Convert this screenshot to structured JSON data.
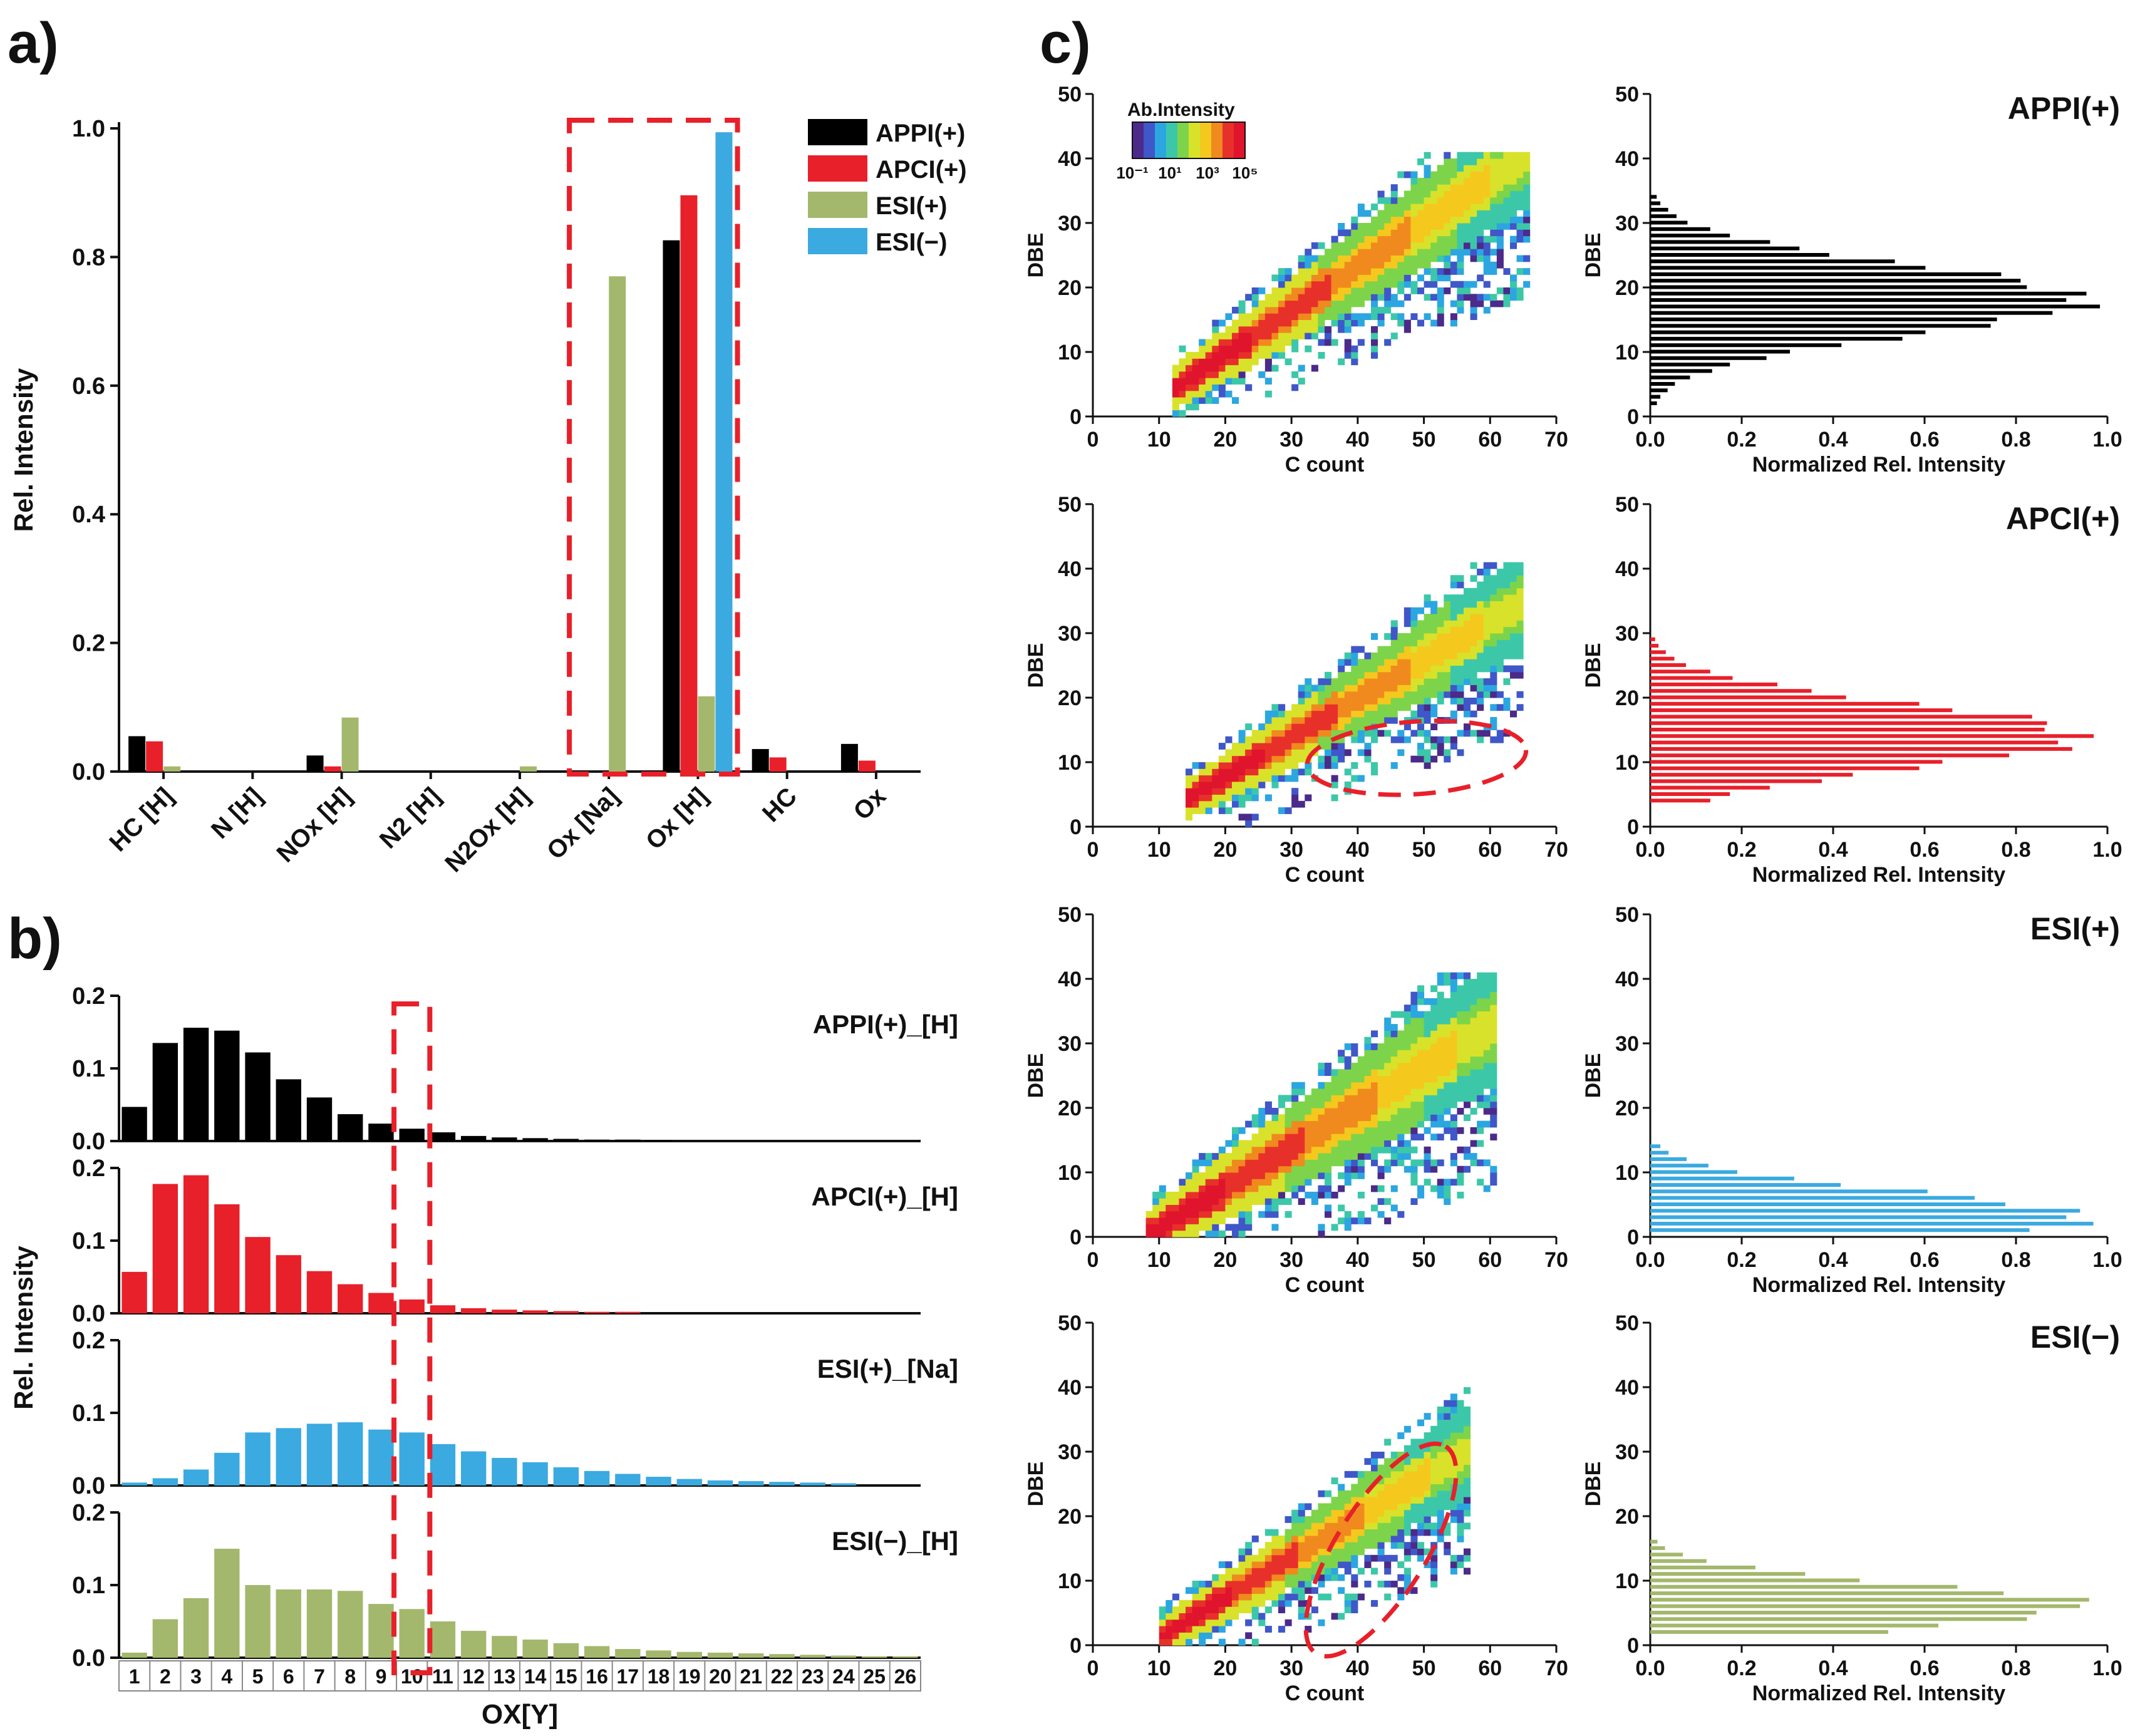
{
  "panels": {
    "a": "a)",
    "b": "b)",
    "c": "c)"
  },
  "colors": {
    "APPI": "#000000",
    "APCI": "#e8202a",
    "ESIpos": "#a3b86c",
    "ESIneg": "#3aaae0",
    "highlight": "#e8202a"
  },
  "chart_data": [
    {
      "id": "panel-a",
      "type": "bar",
      "ylabel": "Rel. Intensity",
      "ylim": [
        0,
        1.0
      ],
      "yticks": [
        "0.0",
        "0.2",
        "0.4",
        "0.6",
        "0.8",
        "1.0"
      ],
      "categories": [
        "HC [H]",
        "N [H]",
        "NOx [H]",
        "N2 [H]",
        "N2Ox [H]",
        "Ox [Na]",
        "Ox [H]",
        "HC",
        "Ox"
      ],
      "series": [
        {
          "name": "APPI(+)",
          "color": "#000000",
          "values": [
            0.055,
            0.0,
            0.025,
            0.0,
            0.0,
            0.0,
            0.826,
            0.035,
            0.043
          ]
        },
        {
          "name": "APCI(+)",
          "color": "#e8202a",
          "values": [
            0.047,
            0.0,
            0.008,
            0.0,
            0.0,
            0.0,
            0.896,
            0.022,
            0.017
          ]
        },
        {
          "name": "ESI(+)",
          "color": "#a3b86c",
          "values": [
            0.008,
            0.0,
            0.084,
            0.0,
            0.008,
            0.77,
            0.117,
            0.0,
            0.0
          ]
        },
        {
          "name": "ESI(−)",
          "color": "#3aaae0",
          "values": [
            0.0,
            0.0,
            0.0,
            0.0,
            0.0,
            0.0,
            0.994,
            0.0,
            0.0
          ]
        }
      ],
      "highlight": "Ox [Na] to Ox [H]"
    },
    {
      "id": "panel-b",
      "type": "bar",
      "ylabel": "Rel. Intensity",
      "xlabel": "OX[Y]",
      "categories": [
        "1",
        "2",
        "3",
        "4",
        "5",
        "6",
        "7",
        "8",
        "9",
        "10",
        "11",
        "12",
        "13",
        "14",
        "15",
        "16",
        "17",
        "18",
        "19",
        "20",
        "21",
        "22",
        "23",
        "24",
        "25",
        "26"
      ],
      "ylim": [
        0,
        0.2
      ],
      "yticks": [
        "0.0",
        "0.1",
        "0.2"
      ],
      "subplots": [
        {
          "name": "APPI(+)_[H]",
          "color": "#000000",
          "values": [
            0.047,
            0.135,
            0.156,
            0.152,
            0.122,
            0.085,
            0.06,
            0.037,
            0.024,
            0.017,
            0.012,
            0.007,
            0.005,
            0.004,
            0.003,
            0.002,
            0.002,
            0.001,
            0,
            0,
            0,
            0,
            0,
            0,
            0,
            0
          ]
        },
        {
          "name": "APCI(+)_[H]",
          "color": "#e8202a",
          "values": [
            0.057,
            0.178,
            0.19,
            0.15,
            0.105,
            0.08,
            0.058,
            0.04,
            0.028,
            0.019,
            0.011,
            0.007,
            0.005,
            0.004,
            0.003,
            0.002,
            0.002,
            0,
            0,
            0,
            0,
            0,
            0,
            0,
            0,
            0
          ]
        },
        {
          "name": "ESI(+)_[Na]",
          "color": "#3aaae0",
          "values": [
            0.004,
            0.01,
            0.022,
            0.045,
            0.073,
            0.079,
            0.085,
            0.087,
            0.077,
            0.073,
            0.057,
            0.047,
            0.038,
            0.032,
            0.025,
            0.02,
            0.016,
            0.012,
            0.009,
            0.007,
            0.006,
            0.005,
            0.004,
            0.003,
            0,
            0
          ]
        },
        {
          "name": "ESI(−)_[H]",
          "color": "#a3b86c",
          "values": [
            0.007,
            0.053,
            0.082,
            0.15,
            0.1,
            0.094,
            0.094,
            0.092,
            0.074,
            0.067,
            0.05,
            0.037,
            0.03,
            0.025,
            0.02,
            0.016,
            0.012,
            0.01,
            0.008,
            0.007,
            0.006,
            0.005,
            0.004,
            0.003,
            0.002,
            0.002
          ]
        }
      ],
      "highlight": "10"
    },
    {
      "id": "panel-c",
      "type": "heatmap",
      "colorbar": {
        "title": "Ab.Intensity",
        "ticks": [
          "10⁻¹",
          "10¹",
          "10³",
          "10⁵"
        ]
      },
      "scatter_axes": {
        "xlabel": "C count",
        "ylabel": "DBE",
        "xlim": [
          0,
          70
        ],
        "ylim": [
          0,
          50
        ],
        "xticks": [
          "0",
          "10",
          "20",
          "30",
          "40",
          "50",
          "60",
          "70"
        ],
        "yticks": [
          "0",
          "10",
          "20",
          "30",
          "40",
          "50"
        ]
      },
      "hist_axes": {
        "xlabel": "Normalized Rel. Intensity",
        "ylabel": "DBE",
        "xlim": [
          0,
          1.0
        ],
        "ylim": [
          0,
          50
        ],
        "xticks": [
          "0.0",
          "0.2",
          "0.4",
          "0.6",
          "0.8",
          "1.0"
        ],
        "yticks": [
          "0",
          "10",
          "20",
          "30",
          "40",
          "50"
        ]
      },
      "rows": [
        {
          "name": "APPI(+)",
          "color": "#000000",
          "trend": {
            "c0": 12,
            "d0": 4,
            "slope": 0.68,
            "cmax": 65,
            "spread": 3.5
          },
          "dbe_dist": {
            "peak": 18,
            "sigma": 5.5,
            "min": 2,
            "max": 35
          }
        },
        {
          "name": "APCI(+)",
          "color": "#e8202a",
          "trend": {
            "c0": 14,
            "d0": 4,
            "slope": 0.6,
            "cmax": 64,
            "spread": 3.2
          },
          "dbe_dist": {
            "peak": 14,
            "sigma": 5.0,
            "min": 4,
            "max": 35
          }
        },
        {
          "name": "ESI(+)",
          "color": "#3aaae0",
          "trend": {
            "c0": 8,
            "d0": 0,
            "slope": 0.62,
            "cmax": 60,
            "spread": 4.0
          },
          "dbe_dist": {
            "peak": 3,
            "sigma": 4.0,
            "min": 1,
            "max": 30
          }
        },
        {
          "name": "ESI(−)",
          "color": "#a3b86c",
          "trend": {
            "c0": 10,
            "d0": 1,
            "slope": 0.62,
            "cmax": 56,
            "spread": 3.0
          },
          "dbe_dist": {
            "peak": 6,
            "sigma": 3.5,
            "min": 2,
            "max": 26
          }
        }
      ]
    }
  ]
}
